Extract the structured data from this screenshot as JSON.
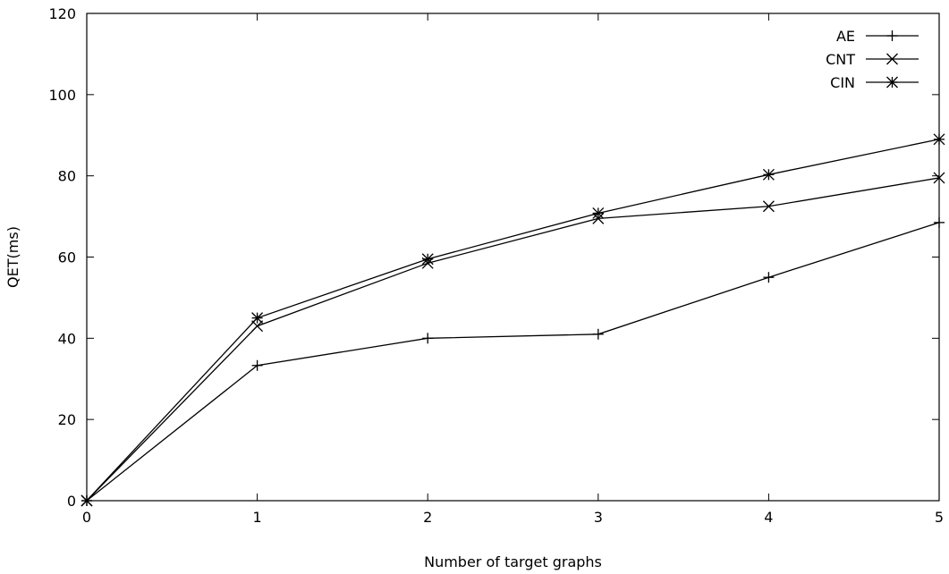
{
  "chart_data": {
    "type": "line",
    "title": "",
    "xlabel": "Number of target graphs",
    "ylabel": "QET(ms)",
    "x": [
      0,
      1,
      2,
      3,
      4,
      5
    ],
    "xlim": [
      0,
      5
    ],
    "ylim": [
      0,
      120
    ],
    "xticks": [
      "0",
      "1",
      "2",
      "3",
      "4",
      "5"
    ],
    "yticks": [
      "0",
      "20",
      "40",
      "60",
      "80",
      "100",
      "120"
    ],
    "grid": false,
    "legend_position": "top-right",
    "series": [
      {
        "name": "AE",
        "marker": "plus",
        "color": "#000000",
        "values": [
          0,
          33.3,
          40.0,
          41.0,
          55.0,
          68.5
        ]
      },
      {
        "name": "CNT",
        "marker": "cross",
        "color": "#000000",
        "values": [
          0,
          43.0,
          58.5,
          69.5,
          72.5,
          79.5
        ]
      },
      {
        "name": "CIN",
        "marker": "asterisk",
        "color": "#000000",
        "values": [
          0,
          45.0,
          59.5,
          70.8,
          80.3,
          89.0
        ]
      }
    ]
  }
}
